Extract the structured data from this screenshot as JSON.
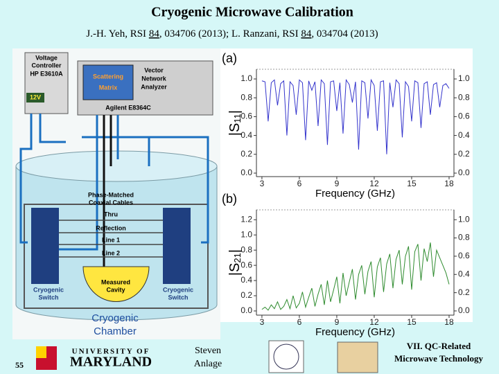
{
  "slide": {
    "title": "Cryogenic Microwave Calibration",
    "reference": [
      "J.-H. Yeh, RSI ",
      "84",
      ", 034706 (2013); L. Ranzani, RSI ",
      "84",
      ", 034704 (2013)"
    ]
  },
  "diagram": {
    "voltage_controller": [
      "Voltage",
      "Controller"
    ],
    "controller_model": "HP E3610A",
    "voltage": "12V",
    "scattering_matrix": [
      "Scattering",
      "Matrix"
    ],
    "vna": [
      "Vector",
      "Network",
      "Analyzer"
    ],
    "vna_model": "Agilent E8364C",
    "cables": [
      "Phase-Matched",
      "Coaxial Cables"
    ],
    "standards": [
      "Thru",
      "Reflection",
      "Line 1",
      "Line 2"
    ],
    "cavity": [
      "Measured",
      "Cavity"
    ],
    "switch_left": [
      "Cryogenic",
      "Switch"
    ],
    "switch_right": [
      "Cryogenic",
      "Switch"
    ],
    "chamber": [
      "Cryogenic",
      "Chamber"
    ]
  },
  "footer": {
    "page": "55",
    "university": [
      "UNIVERSITY OF",
      "MARYLAND"
    ],
    "author": [
      "Steven",
      "Anlage"
    ],
    "section": [
      "VII. QC-Related",
      "Microwave Technology"
    ]
  },
  "chart_data": [
    {
      "type": "line",
      "panel": "(a)",
      "ylabel": [
        "|S",
        "11",
        "|"
      ],
      "xlabel": "Frequency (GHz)",
      "x": [
        3,
        3.25,
        3.5,
        3.75,
        4,
        4.25,
        4.5,
        4.75,
        5,
        5.25,
        5.5,
        5.75,
        6,
        6.25,
        6.5,
        6.75,
        7,
        7.25,
        7.5,
        7.75,
        8,
        8.25,
        8.5,
        8.75,
        9,
        9.25,
        9.5,
        9.75,
        10,
        10.25,
        10.5,
        10.75,
        11,
        11.25,
        11.5,
        11.75,
        12,
        12.25,
        12.5,
        12.75,
        13,
        13.25,
        13.5,
        13.75,
        14,
        14.25,
        14.5,
        14.75,
        15,
        15.25,
        15.5,
        15.75,
        16,
        16.25,
        16.5,
        16.75,
        17,
        17.25,
        17.5,
        17.75,
        18
      ],
      "series": [
        {
          "name": "|S11|",
          "color": "#3333cc",
          "values": [
            0.98,
            0.97,
            0.55,
            0.96,
            0.99,
            0.72,
            0.95,
            0.98,
            0.4,
            0.97,
            0.93,
            0.62,
            0.99,
            0.96,
            0.35,
            0.98,
            0.88,
            0.97,
            0.5,
            0.99,
            0.95,
            0.3,
            0.97,
            0.98,
            0.66,
            0.96,
            0.42,
            0.99,
            0.94,
            0.75,
            0.97,
            0.25,
            0.98,
            0.96,
            0.58,
            0.99,
            0.93,
            0.45,
            0.97,
            0.98,
            0.2,
            0.96,
            0.7,
            0.99,
            0.95,
            0.38,
            0.97,
            0.92,
            0.55,
            0.98,
            0.96,
            0.48,
            0.95,
            0.97,
            0.62,
            0.94,
            0.96,
            0.7,
            0.93,
            0.95,
            0.9
          ]
        }
      ],
      "xlim": [
        2.56,
        18.39
      ],
      "xticks": [
        3,
        6,
        9,
        12,
        15,
        18
      ],
      "ylim": [
        -0.037,
        1.103
      ],
      "yticks": [
        {
          "value": 0,
          "label": "0.0"
        },
        {
          "value": 0.2,
          "label": "0.2"
        },
        {
          "value": 0.4,
          "label": "0.4"
        },
        {
          "value": 0.6,
          "label": "0.6"
        },
        {
          "value": 0.8,
          "label": "0.8"
        },
        {
          "value": 1,
          "label": "1.0"
        }
      ],
      "y2lim": [
        -0.037,
        1.103
      ],
      "y2ticks": [
        {
          "value": 0,
          "label": "0.0"
        },
        {
          "value": 0.2,
          "label": "0.2"
        },
        {
          "value": 0.4,
          "label": "0.4"
        },
        {
          "value": 0.6,
          "label": "0.6"
        },
        {
          "value": 0.8,
          "label": "0.8"
        },
        {
          "value": 1,
          "label": "1.0"
        }
      ]
    },
    {
      "type": "line",
      "panel": "(b)",
      "ylabel": [
        "|S",
        "21",
        "|"
      ],
      "xlabel": "Frequency (GHz)",
      "x": [
        3,
        3.25,
        3.5,
        3.75,
        4,
        4.25,
        4.5,
        4.75,
        5,
        5.25,
        5.5,
        5.75,
        6,
        6.25,
        6.5,
        6.75,
        7,
        7.25,
        7.5,
        7.75,
        8,
        8.25,
        8.5,
        8.75,
        9,
        9.25,
        9.5,
        9.75,
        10,
        10.25,
        10.5,
        10.75,
        11,
        11.25,
        11.5,
        11.75,
        12,
        12.25,
        12.5,
        12.75,
        13,
        13.25,
        13.5,
        13.75,
        14,
        14.25,
        14.5,
        14.75,
        15,
        15.25,
        15.5,
        15.75,
        16,
        16.25,
        16.5,
        16.75,
        17,
        17.25,
        17.5,
        17.75,
        18
      ],
      "series": [
        {
          "name": "|S21|",
          "color": "#2e8b2e",
          "values": [
            0.02,
            0.05,
            0.01,
            0.08,
            0.03,
            0.12,
            0.02,
            0.06,
            0.15,
            0.03,
            0.2,
            0.04,
            0.1,
            0.25,
            0.05,
            0.18,
            0.3,
            0.06,
            0.22,
            0.35,
            0.08,
            0.4,
            0.12,
            0.28,
            0.45,
            0.1,
            0.5,
            0.2,
            0.38,
            0.55,
            0.15,
            0.48,
            0.6,
            0.22,
            0.52,
            0.65,
            0.18,
            0.58,
            0.7,
            0.25,
            0.62,
            0.75,
            0.3,
            0.68,
            0.8,
            0.35,
            0.72,
            0.85,
            0.28,
            0.78,
            0.88,
            0.4,
            0.82,
            0.65,
            0.9,
            0.45,
            0.8,
            0.7,
            0.6,
            0.5,
            0.35
          ]
        }
      ],
      "xlim": [
        2.56,
        18.39
      ],
      "xticks": [
        3,
        6,
        9,
        12,
        15,
        18
      ],
      "ylim": [
        -0.055,
        1.33
      ],
      "yticks": [
        {
          "value": 0,
          "label": "0.0"
        },
        {
          "value": 0.2,
          "label": "0.2"
        },
        {
          "value": 0.4,
          "label": "0.4"
        },
        {
          "value": 0.6,
          "label": "0.6"
        },
        {
          "value": 0.8,
          "label": "0.8"
        },
        {
          "value": 1,
          "label": "1.0"
        },
        {
          "value": 1.2,
          "label": "1.2"
        }
      ],
      "y2lim": [
        -0.046,
        1.108
      ],
      "y2ticks": [
        {
          "value": 0,
          "label": "0.0"
        },
        {
          "value": 0.2,
          "label": "0.2"
        },
        {
          "value": 0.4,
          "label": "0.4"
        },
        {
          "value": 0.6,
          "label": "0.6"
        },
        {
          "value": 0.8,
          "label": "0.8"
        },
        {
          "value": 1,
          "label": "1.0"
        }
      ]
    }
  ]
}
